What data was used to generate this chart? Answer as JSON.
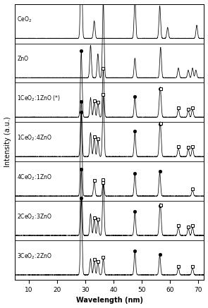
{
  "xlabel": "Wavelength (nm)",
  "ylabel": "Intensity (a.u.)",
  "xlim": [
    5,
    72
  ],
  "xticks": [
    10,
    20,
    30,
    40,
    50,
    60,
    70
  ],
  "n_spectra": 7,
  "spectra": [
    {
      "label": "CeO$_2$",
      "peaks": [
        28.5,
        33.1,
        47.5,
        56.3,
        59.1,
        69.4
      ],
      "heights": [
        4.5,
        0.8,
        1.8,
        1.5,
        0.5,
        0.6
      ],
      "noise_level": 0.05,
      "dot_markers": [],
      "square_markers": []
    },
    {
      "label": "ZnO",
      "peaks": [
        31.8,
        34.4,
        36.3,
        47.5,
        56.6,
        62.9,
        66.4,
        67.9,
        69.1
      ],
      "heights": [
        1.5,
        1.1,
        3.5,
        0.9,
        1.4,
        0.45,
        0.35,
        0.45,
        0.35
      ],
      "noise_level": 0.05,
      "dot_markers": [],
      "square_markers": []
    },
    {
      "label": "1CeO$_2$:1ZnO (*)",
      "peaks": [
        28.5,
        31.8,
        33.1,
        34.4,
        36.3,
        47.5,
        56.3,
        56.6,
        62.9,
        66.4,
        67.9
      ],
      "heights": [
        3.0,
        0.9,
        0.7,
        0.65,
        2.2,
        0.9,
        0.8,
        0.8,
        0.38,
        0.32,
        0.38
      ],
      "noise_level": 0.05,
      "dot_markers": [
        28.5,
        47.5,
        56.3
      ],
      "square_markers": [
        33.1,
        34.4,
        36.3,
        56.6,
        62.9,
        66.4,
        67.9
      ]
    },
    {
      "label": "1CeO$_2$:4ZnO",
      "peaks": [
        28.5,
        31.8,
        33.1,
        34.4,
        36.3,
        47.5,
        56.3,
        56.6,
        62.9,
        66.4,
        67.9
      ],
      "heights": [
        2.5,
        1.1,
        0.85,
        0.75,
        2.8,
        1.1,
        0.9,
        0.95,
        0.42,
        0.37,
        0.42
      ],
      "noise_level": 0.05,
      "dot_markers": [
        28.5,
        47.5,
        56.3
      ],
      "square_markers": [
        33.1,
        34.4,
        36.3,
        56.6,
        62.9,
        66.4,
        67.9
      ]
    },
    {
      "label": "4CeO$_2$:1ZnO",
      "peaks": [
        28.5,
        33.1,
        36.3,
        47.5,
        56.3,
        67.9
      ],
      "heights": [
        3.8,
        0.65,
        0.7,
        1.0,
        1.1,
        0.28
      ],
      "noise_level": 0.05,
      "dot_markers": [
        28.5,
        47.5,
        56.3
      ],
      "square_markers": [
        33.1,
        36.3,
        67.9
      ]
    },
    {
      "label": "2CeO$_2$:3ZnO",
      "peaks": [
        28.5,
        31.8,
        33.1,
        34.4,
        36.3,
        47.5,
        56.3,
        56.6,
        62.9,
        66.4,
        67.9
      ],
      "heights": [
        3.0,
        1.0,
        0.75,
        0.68,
        2.4,
        1.05,
        0.82,
        0.88,
        0.4,
        0.34,
        0.4
      ],
      "noise_level": 0.05,
      "dot_markers": [
        28.5,
        47.5,
        56.3
      ],
      "square_markers": [
        33.1,
        34.4,
        36.3,
        56.6,
        62.9,
        66.4,
        67.9
      ]
    },
    {
      "label": "3CeO$_2$:2ZnO",
      "peaks": [
        28.5,
        31.8,
        33.1,
        34.4,
        36.3,
        47.5,
        56.3,
        62.9,
        67.9
      ],
      "heights": [
        3.5,
        0.75,
        0.65,
        0.58,
        0.75,
        1.05,
        0.9,
        0.33,
        0.33
      ],
      "noise_level": 0.05,
      "dot_markers": [
        28.5,
        47.5,
        56.3
      ],
      "square_markers": [
        33.1,
        34.4,
        36.3,
        62.9,
        67.9
      ]
    }
  ]
}
